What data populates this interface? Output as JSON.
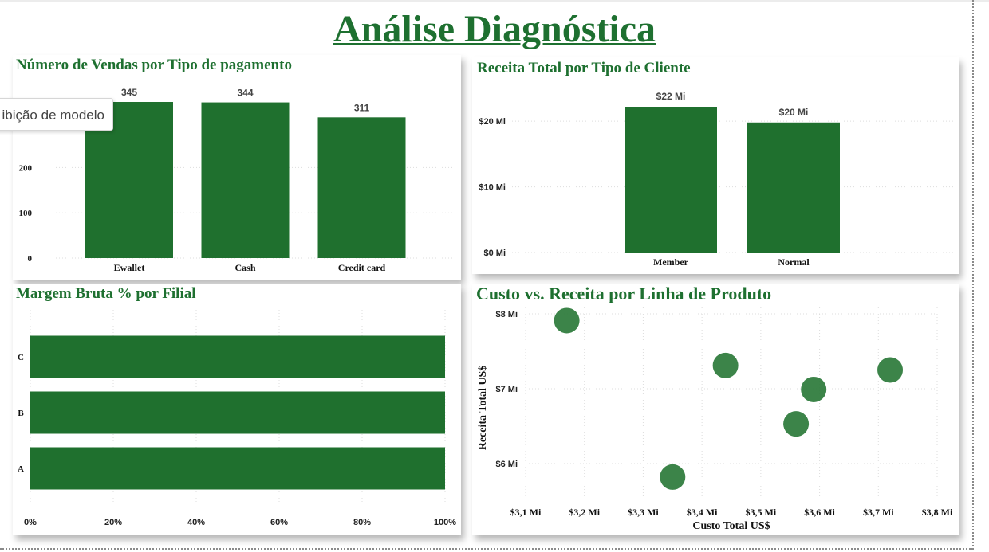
{
  "page": {
    "title": "Análise Diagnóstica",
    "tooltip": "ibição de modelo"
  },
  "colors": {
    "accent": "#1e7030",
    "bar": "#1f702e",
    "bubble": "#2b7a3a"
  },
  "panels": {
    "payment": {
      "title": "Número de Vendas por Tipo de pagamento"
    },
    "customer": {
      "title": "Receita Total por Tipo de Cliente"
    },
    "margin": {
      "title": "Margem Bruta % por Filial"
    },
    "scatter": {
      "title": "Custo vs. Receita por Linha de Produto"
    }
  },
  "chart_data": [
    {
      "id": "payment",
      "type": "bar",
      "title": "Número de Vendas por Tipo de pagamento",
      "categories": [
        "Ewallet",
        "Cash",
        "Credit card"
      ],
      "values": [
        345,
        344,
        311
      ],
      "value_labels": [
        "345",
        "344",
        "311"
      ],
      "ylim": [
        0,
        345
      ],
      "yticks": [
        0,
        100,
        200
      ],
      "ytick_labels": [
        "0",
        "100",
        "200"
      ],
      "grid": true
    },
    {
      "id": "customer",
      "type": "bar",
      "title": "Receita Total por Tipo de Cliente",
      "categories": [
        "Member",
        "Normal"
      ],
      "values": [
        22.2,
        19.8
      ],
      "value_labels": [
        "$22 Mi",
        "$20 Mi"
      ],
      "ylim": [
        0,
        22.2
      ],
      "yticks": [
        0,
        10,
        20
      ],
      "ytick_labels": [
        "$0 Mi",
        "$10 Mi",
        "$20 Mi"
      ],
      "grid": true
    },
    {
      "id": "margin",
      "type": "bar",
      "orientation": "horizontal",
      "title": "Margem Bruta % por Filial",
      "categories": [
        "C",
        "B",
        "A"
      ],
      "values": [
        100,
        100,
        100
      ],
      "xlim": [
        0,
        100
      ],
      "xticks": [
        0,
        20,
        40,
        60,
        80,
        100
      ],
      "xtick_labels": [
        "0%",
        "20%",
        "40%",
        "60%",
        "80%",
        "100%"
      ],
      "grid": true
    },
    {
      "id": "scatter",
      "type": "scatter",
      "title": "Custo vs. Receita por Linha de Produto",
      "xlabel": "Custo Total US$",
      "ylabel": "Receita Total US$",
      "x": [
        3.17,
        3.44,
        3.72,
        3.59,
        3.56,
        3.35
      ],
      "y": [
        7.91,
        7.31,
        7.25,
        6.99,
        6.53,
        5.82
      ],
      "xlim": [
        3.1,
        3.8
      ],
      "ylim": [
        5.9,
        8.0
      ],
      "xticks": [
        3.1,
        3.2,
        3.3,
        3.4,
        3.5,
        3.6,
        3.7,
        3.8
      ],
      "xtick_labels": [
        "$3,1 Mi",
        "$3,2 Mi",
        "$3,3 Mi",
        "$3,4 Mi",
        "$3,5 Mi",
        "$3,6 Mi",
        "$3,7 Mi",
        "$3,8 Mi"
      ],
      "yticks": [
        6,
        7,
        8
      ],
      "ytick_labels": [
        "$6 Mi",
        "$7 Mi",
        "$8 Mi"
      ],
      "grid": true
    }
  ]
}
